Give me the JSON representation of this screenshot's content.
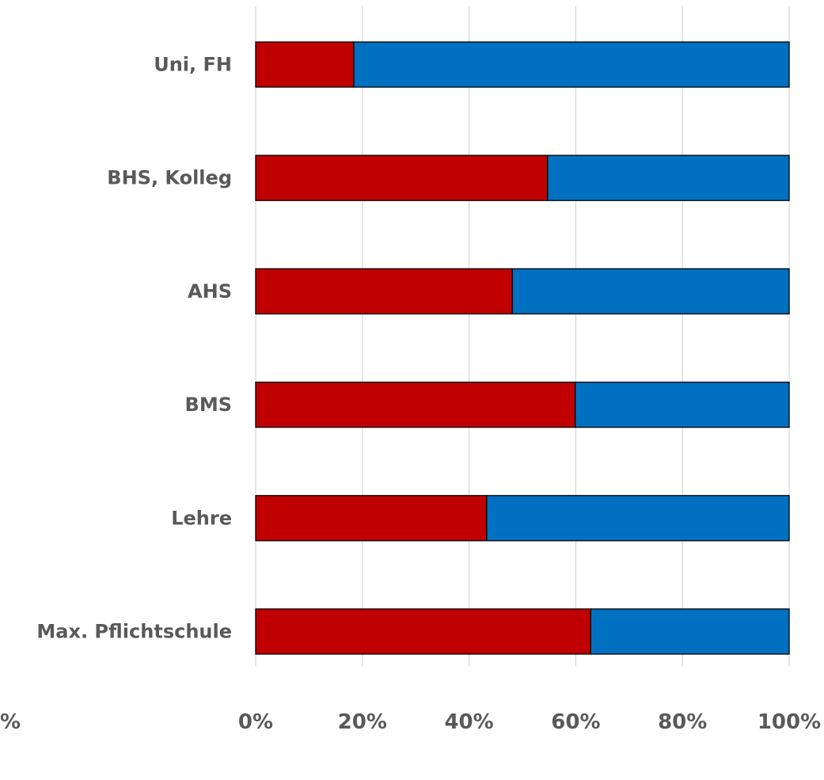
{
  "chart_data": {
    "type": "bar",
    "orientation": "horizontal",
    "stacked": true,
    "categories": [
      "Uni, FH",
      "BHS, Kolleg",
      "AHS",
      "BMS",
      "Lehre",
      "Max. Pflichtschule"
    ],
    "series": [
      {
        "color": "#c00000",
        "values": [
          18.4,
          54.7,
          48.1,
          59.9,
          43.3,
          62.8
        ]
      },
      {
        "color": "#0070c0",
        "values": [
          81.6,
          45.3,
          51.9,
          40.1,
          56.7,
          37.2
        ]
      }
    ],
    "x_ticks": [
      "0%",
      "20%",
      "40%",
      "60%",
      "80%",
      "100%"
    ],
    "xlim": [
      0,
      100
    ],
    "clipped_left_tick": "%",
    "grid": "vertical",
    "legend": "none",
    "title": "",
    "xlabel": "",
    "ylabel": ""
  }
}
